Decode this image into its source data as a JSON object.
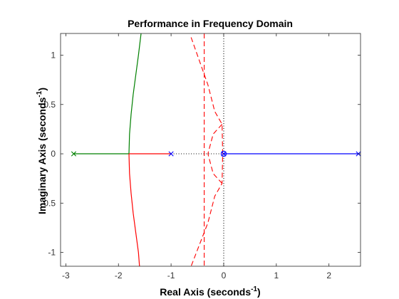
{
  "chart_data": {
    "type": "line",
    "title": "Performance in Frequency Domain",
    "xlabel": {
      "text": "Real Axis (seconds",
      "sup": "-1",
      "close": ")"
    },
    "ylabel": {
      "text": "Imaginary Axis (seconds",
      "sup": "-1",
      "close": ")"
    },
    "xlim": [
      -3.1,
      2.6
    ],
    "ylim": [
      -1.14,
      1.22
    ],
    "xticks": [
      -3,
      -2,
      -1,
      0,
      1,
      2
    ],
    "xtick_labels": [
      "-3",
      "-2",
      "-1",
      "0",
      "1",
      "2"
    ],
    "yticks": [
      -1,
      -0.5,
      0,
      0.5,
      1
    ],
    "ytick_labels": [
      "-1",
      "-0.5",
      "0",
      "0.5",
      "1"
    ],
    "grid": false,
    "series": [
      {
        "color": "#008000",
        "style": "solid",
        "x": [
          -2.85,
          -1.8
        ],
        "y": [
          0,
          0
        ]
      },
      {
        "color": "#008000",
        "style": "solid",
        "x": [
          -1.8,
          -1.79,
          -1.76,
          -1.72,
          -1.67,
          -1.62,
          -1.57
        ],
        "y": [
          0,
          0.2,
          0.4,
          0.6,
          0.8,
          1.0,
          1.22
        ]
      },
      {
        "color": "#ff0000",
        "style": "solid",
        "x": [
          -1.8,
          -1.0
        ],
        "y": [
          0,
          0
        ]
      },
      {
        "color": "#ff0000",
        "style": "solid",
        "x": [
          -1.8,
          -1.79,
          -1.76,
          -1.72,
          -1.67,
          -1.62,
          -1.6
        ],
        "y": [
          0,
          -0.2,
          -0.4,
          -0.6,
          -0.8,
          -1.0,
          -1.14
        ]
      },
      {
        "color": "#0000ff",
        "style": "solid",
        "x": [
          0,
          2.56
        ],
        "y": [
          0,
          0
        ]
      }
    ],
    "grid_lines": [
      {
        "color": "#ff0000",
        "style": "dashed",
        "x": [
          -0.62,
          -0.3,
          -0.17,
          -0.03,
          -0.02,
          -0.03,
          -0.17,
          -0.3,
          -0.62
        ],
        "y": [
          1.18,
          0.7,
          0.43,
          0.3,
          0,
          -0.3,
          -0.43,
          -0.7,
          -1.14
        ]
      },
      {
        "color": "#ff0000",
        "style": "dashed",
        "x": [
          -0.03,
          -0.2,
          -0.3,
          -0.2,
          -0.03
        ],
        "y": [
          0.3,
          0.2,
          0,
          -0.2,
          -0.3
        ]
      },
      {
        "color": "#ff0000",
        "style": "dashed",
        "x": [
          -0.37,
          -0.37
        ],
        "y": [
          1.22,
          -1.14
        ]
      },
      {
        "color": "#000000",
        "style": "dotted",
        "x": [
          -1.0,
          0
        ],
        "y": [
          0,
          0
        ]
      },
      {
        "color": "#000000",
        "style": "dotted",
        "x": [
          0,
          0
        ],
        "y": [
          1.22,
          -1.14
        ]
      }
    ],
    "poles": [
      {
        "x": -2.85,
        "y": 0,
        "color": "#008000"
      },
      {
        "x": -1.0,
        "y": 0,
        "color": "#0000ff"
      },
      {
        "x": 0.0,
        "y": 0,
        "color": "#0000ff"
      },
      {
        "x": 2.56,
        "y": 0,
        "color": "#0000ff"
      }
    ],
    "zeros": [
      {
        "x": 0.0,
        "y": 0,
        "color": "#0000ff"
      }
    ]
  }
}
